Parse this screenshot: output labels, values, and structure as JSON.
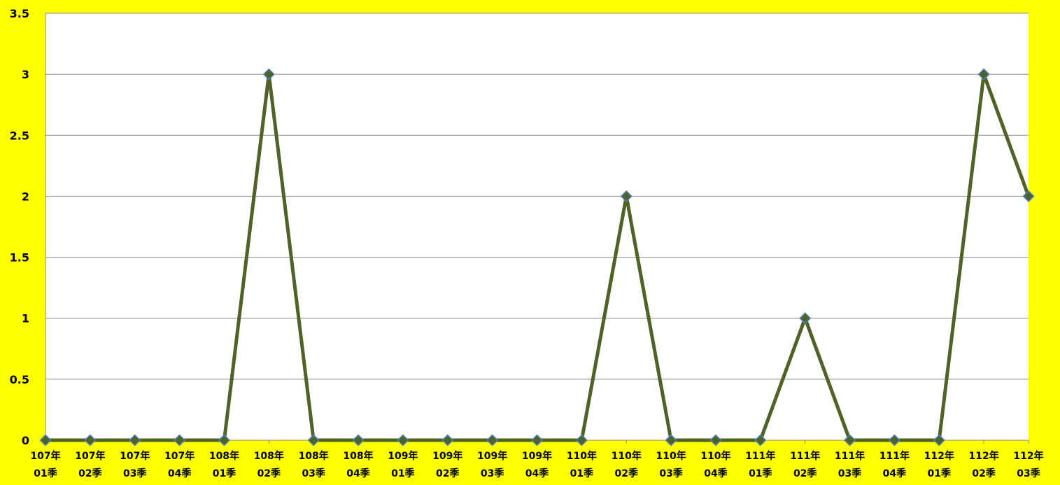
{
  "chart_data": {
    "type": "line",
    "title": "",
    "xlabel": "",
    "ylabel": "",
    "ylim": [
      0,
      3.5
    ],
    "yticks": [
      "0",
      "0.5",
      "1",
      "1.5",
      "2",
      "2.5",
      "3",
      "3.5"
    ],
    "grid": true,
    "legend": "none",
    "categories": [
      [
        "107年",
        "01季"
      ],
      [
        "107年",
        "02季"
      ],
      [
        "107年",
        "03季"
      ],
      [
        "107年",
        "04季"
      ],
      [
        "108年",
        "01季"
      ],
      [
        "108年",
        "02季"
      ],
      [
        "108年",
        "03季"
      ],
      [
        "108年",
        "04季"
      ],
      [
        "109年",
        "01季"
      ],
      [
        "109年",
        "02季"
      ],
      [
        "109年",
        "03季"
      ],
      [
        "109年",
        "04季"
      ],
      [
        "110年",
        "01季"
      ],
      [
        "110年",
        "02季"
      ],
      [
        "110年",
        "03季"
      ],
      [
        "110年",
        "04季"
      ],
      [
        "111年",
        "01季"
      ],
      [
        "111年",
        "02季"
      ],
      [
        "111年",
        "03季"
      ],
      [
        "111年",
        "04季"
      ],
      [
        "112年",
        "01季"
      ],
      [
        "112年",
        "02季"
      ],
      [
        "112年",
        "03季"
      ]
    ],
    "series": [
      {
        "values": [
          0,
          0,
          0,
          0,
          0,
          3,
          0,
          0,
          0,
          0,
          0,
          0,
          0,
          2,
          0,
          0,
          0,
          1,
          0,
          0,
          0,
          3,
          2
        ]
      }
    ],
    "colors": {
      "background": "#ffff00",
      "plot_area": "#ffffff",
      "line": "#4f6228",
      "marker_fill": "#4f6228",
      "marker_stroke": "#4f81bd",
      "grid": "#8c8c8c"
    }
  }
}
